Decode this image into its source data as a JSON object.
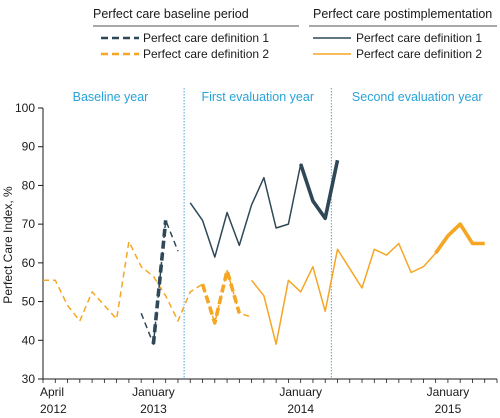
{
  "chart_data": {
    "type": "line",
    "ylabel": "Perfect Care Index, %",
    "ylim": [
      30,
      100
    ],
    "yticks": [
      30,
      40,
      50,
      60,
      70,
      80,
      90,
      100
    ],
    "xlim": [
      0,
      37
    ],
    "x_units": "months from April 2012",
    "xticks": [
      {
        "x": 0,
        "line1": "April",
        "line2": "2012"
      },
      {
        "x": 9,
        "line1": "January",
        "line2": "2013"
      },
      {
        "x": 21,
        "line1": "January",
        "line2": "2014"
      },
      {
        "x": 33,
        "line1": "January",
        "line2": "2015"
      }
    ],
    "periods": [
      {
        "label": "Baseline year",
        "center": 5.5
      },
      {
        "label": "First evaluation year",
        "center": 17.5
      },
      {
        "label": "Second evaluation year",
        "center": 30.5
      }
    ],
    "period_dividers": [
      11.5,
      23.5
    ],
    "legend": {
      "baseline_title": "Perfect care baseline period",
      "post_title": "Perfect care postimplementation",
      "entries": [
        {
          "key": "base1",
          "label": "Perfect care definition 1"
        },
        {
          "key": "base2",
          "label": "Perfect care definition 2"
        },
        {
          "key": "post1",
          "label": "Perfect care definition 1"
        },
        {
          "key": "post2",
          "label": "Perfect care definition 2"
        }
      ]
    },
    "colors": {
      "definition1": "#2f4858",
      "definition2": "#f5a623",
      "period_text": "#29a3d9",
      "divider": "#4aa8d8"
    },
    "series": [
      {
        "key": "base1_thin",
        "definition": 1,
        "style": "dashed",
        "weight": "thin",
        "x": [
          8,
          9,
          10,
          11
        ],
        "y": [
          47,
          39,
          71,
          63
        ]
      },
      {
        "key": "base1_bold",
        "definition": 1,
        "style": "dashed",
        "weight": "bold",
        "x": [
          9,
          10
        ],
        "y": [
          39,
          71
        ]
      },
      {
        "key": "base2_thin",
        "definition": 2,
        "style": "dashed",
        "weight": "thin",
        "x": [
          0,
          1,
          2,
          3,
          4,
          5,
          6,
          7,
          8,
          9,
          10,
          11,
          12,
          13,
          14,
          15,
          16,
          17
        ],
        "y": [
          55.5,
          55.5,
          49,
          45,
          52.5,
          49,
          45.5,
          65.5,
          59,
          56.5,
          51.5,
          45,
          52.5,
          54.5,
          44.5,
          58,
          47,
          46
        ]
      },
      {
        "key": "base2_bold",
        "definition": 2,
        "style": "dashed",
        "weight": "bold",
        "x": [
          13,
          14,
          15,
          16
        ],
        "y": [
          54.5,
          44.5,
          58,
          47
        ]
      },
      {
        "key": "post1_thin",
        "definition": 1,
        "style": "solid",
        "weight": "thin",
        "x": [
          12,
          13,
          14,
          15,
          16,
          17,
          18,
          19,
          20,
          21,
          22,
          23,
          24
        ],
        "y": [
          75.5,
          71,
          61.5,
          73,
          64.5,
          75,
          82,
          69,
          70,
          85.5,
          76,
          71.5,
          86.5
        ]
      },
      {
        "key": "post1_bold",
        "definition": 1,
        "style": "solid",
        "weight": "bold",
        "x": [
          21,
          22,
          23,
          24
        ],
        "y": [
          85.5,
          76,
          71.5,
          86.5
        ]
      },
      {
        "key": "post2_thin",
        "definition": 2,
        "style": "solid",
        "weight": "thin",
        "x": [
          17,
          18,
          19,
          20,
          21,
          22,
          23,
          24,
          25,
          26,
          27,
          28,
          29,
          30,
          31,
          32,
          33,
          34,
          35,
          36
        ],
        "y": [
          55.5,
          51.5,
          39,
          55.5,
          52.5,
          59,
          47.5,
          63.5,
          58.5,
          53.5,
          63.5,
          62,
          65,
          57.5,
          59,
          62.5,
          67,
          70,
          65,
          65
        ]
      },
      {
        "key": "post2_bold",
        "definition": 2,
        "style": "solid",
        "weight": "bold",
        "x": [
          32,
          33,
          34,
          35,
          36
        ],
        "y": [
          62.5,
          67,
          70,
          65,
          65
        ]
      }
    ]
  }
}
